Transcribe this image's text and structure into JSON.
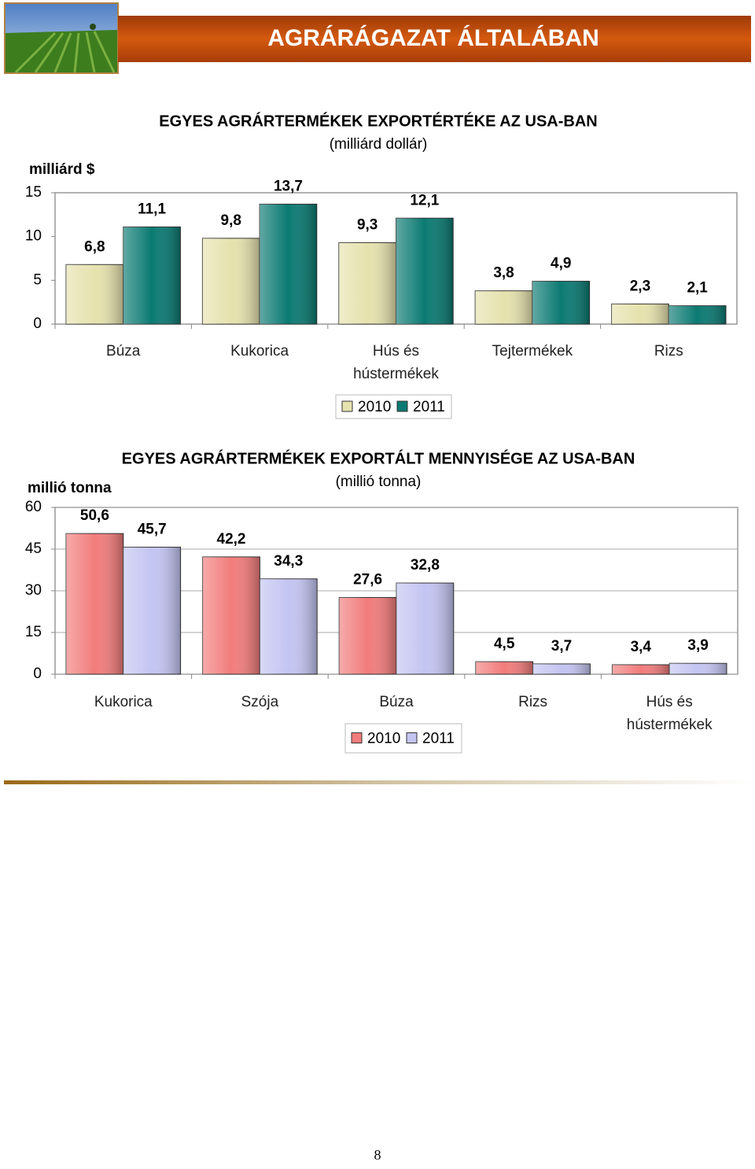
{
  "header": {
    "title": "AGRÁRÁGAZAT ÁLTALÁBAN"
  },
  "chart_data": [
    {
      "type": "bar",
      "title": "EGYES AGRÁRTERMÉKEK EXPORTÉRTÉKE AZ USA-BAN",
      "subtitle": "(milliárd dollár)",
      "y_label": "milliárd $",
      "categories": [
        "Búza",
        "Kukorica",
        "Hús és hústermékek",
        "Tejtermékek",
        "Rizs"
      ],
      "series": [
        {
          "name": "2010",
          "color": "#e6e2ae",
          "values": [
            6.8,
            9.8,
            9.3,
            3.8,
            2.3
          ],
          "value_labels": [
            "6,8",
            "9,8",
            "9,3",
            "3,8",
            "2,3"
          ]
        },
        {
          "name": "2011",
          "color": "#0b7a72",
          "values": [
            11.1,
            13.7,
            12.1,
            4.9,
            2.1
          ],
          "value_labels": [
            "11,1",
            "13,7",
            "12,1",
            "4,9",
            "2,1"
          ]
        }
      ],
      "ylim": [
        0,
        15
      ],
      "yticks": [
        0,
        5,
        10,
        15
      ],
      "grid": false
    },
    {
      "type": "bar",
      "title": "EGYES AGRÁRTERMÉKEK EXPORTÁLT MENNYISÉGE AZ USA-BAN",
      "subtitle": "(millió tonna)",
      "y_label": "millió tonna",
      "categories": [
        "Kukorica",
        "Szója",
        "Búza",
        "Rizs",
        "Hús és hústermékek"
      ],
      "series": [
        {
          "name": "2010",
          "color": "#f27c7c",
          "values": [
            50.6,
            42.2,
            27.6,
            4.5,
            3.4
          ],
          "value_labels": [
            "50,6",
            "42,2",
            "27,6",
            "4,5",
            "3,4"
          ]
        },
        {
          "name": "2011",
          "color": "#c4c4f2",
          "values": [
            45.7,
            34.3,
            32.8,
            3.7,
            3.9
          ],
          "value_labels": [
            "45,7",
            "34,3",
            "32,8",
            "3,7",
            "3,9"
          ]
        }
      ],
      "ylim": [
        0,
        60
      ],
      "yticks": [
        0,
        15,
        30,
        45,
        60
      ],
      "grid": true
    }
  ],
  "page_number": "8"
}
